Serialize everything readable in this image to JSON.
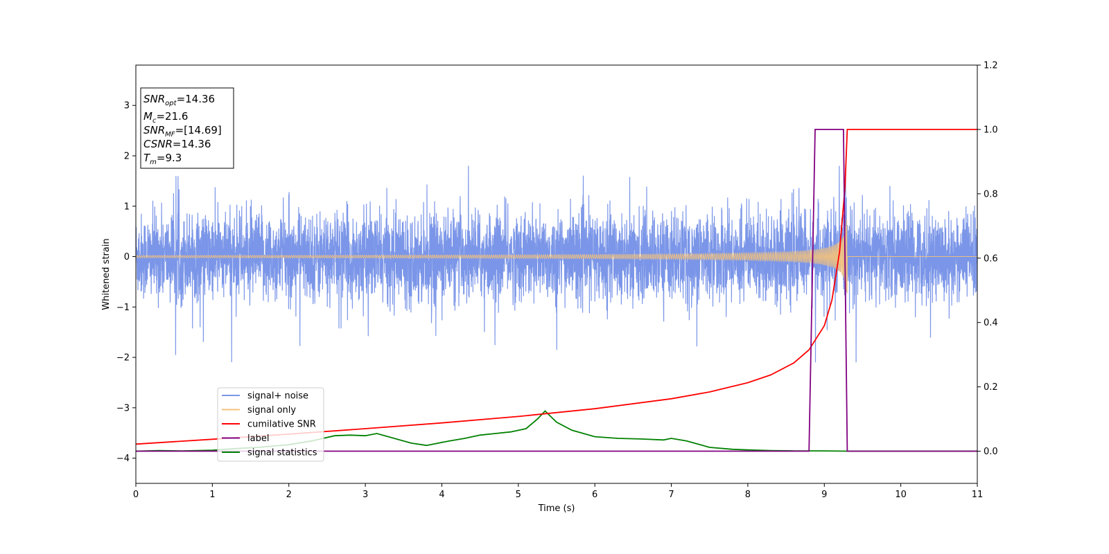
{
  "chart_data": {
    "type": "line",
    "xlabel": "Time (s)",
    "ylabel_left": "Whitened strain",
    "ylabel_right": "",
    "xlim": [
      0,
      11
    ],
    "ylim_left": [
      -4.5,
      3.8
    ],
    "ylim_right": [
      -0.1,
      1.2
    ],
    "x_ticks": [
      "0",
      "1",
      "2",
      "3",
      "4",
      "5",
      "6",
      "7",
      "8",
      "9",
      "10",
      "11"
    ],
    "y_left_ticks": [
      "−4",
      "−3",
      "−2",
      "−1",
      "0",
      "1",
      "2",
      "3"
    ],
    "y_right_ticks": [
      "0.0",
      "0.2",
      "0.4",
      "0.6",
      "0.8",
      "1.0",
      "1.2"
    ],
    "grid": false,
    "legend_position": "lower-left",
    "info_box": {
      "snr_opt_base": "SNR",
      "snr_opt_sub": "opt",
      "snr_opt_value": "=14.36",
      "mc_base": "M",
      "mc_sub": "c",
      "mc_value": "=21.6",
      "snr_mf_base": "SNR",
      "snr_mf_sub": "MF",
      "snr_mf_value": "=[14.69]",
      "csnr_base": "CSNR",
      "csnr_value": "=14.36",
      "tm_base": "T",
      "tm_sub": "m",
      "tm_value": "=9.3"
    },
    "series": [
      {
        "name": "signal+ noise",
        "axis": "left",
        "color": "#7b96e8",
        "description_range": [
          -2.1,
          1.8
        ]
      },
      {
        "name": "signal only",
        "axis": "left",
        "color": "#f5c27a",
        "merger_time": 9.3,
        "peak_amplitude": 0.9
      },
      {
        "name": "cumilative SNR",
        "axis": "right",
        "color": "#ff0000",
        "x": [
          0,
          1,
          2,
          3,
          4,
          5,
          6,
          7,
          7.5,
          8,
          8.3,
          8.6,
          8.8,
          9.0,
          9.1,
          9.2,
          9.27,
          9.3,
          11
        ],
        "y": [
          0.022,
          0.037,
          0.053,
          0.07,
          0.088,
          0.108,
          0.132,
          0.163,
          0.184,
          0.213,
          0.237,
          0.274,
          0.315,
          0.39,
          0.47,
          0.62,
          0.82,
          1.0,
          1.0
        ]
      },
      {
        "name": "label",
        "axis": "right",
        "color": "#800080",
        "x": [
          0,
          8.8,
          8.88,
          9.25,
          9.3,
          11
        ],
        "y": [
          0,
          0,
          1,
          1,
          0,
          0
        ]
      },
      {
        "name": "signal statistics",
        "axis": "right",
        "color": "#008000",
        "x": [
          0,
          0.3,
          0.6,
          1.0,
          1.3,
          1.6,
          2.0,
          2.3,
          2.6,
          2.8,
          3.0,
          3.15,
          3.3,
          3.6,
          3.8,
          4.1,
          4.3,
          4.5,
          4.7,
          4.9,
          5.1,
          5.25,
          5.35,
          5.5,
          5.7,
          6.0,
          6.3,
          6.6,
          6.9,
          7.0,
          7.2,
          7.5,
          7.8,
          8.0,
          8.3,
          8.6,
          9.0,
          9.3,
          11
        ],
        "y": [
          0,
          0.002,
          0.001,
          0.003,
          0.008,
          0.012,
          0.02,
          0.032,
          0.048,
          0.05,
          0.048,
          0.055,
          0.045,
          0.025,
          0.018,
          0.032,
          0.04,
          0.05,
          0.055,
          0.06,
          0.07,
          0.1,
          0.125,
          0.09,
          0.065,
          0.045,
          0.04,
          0.038,
          0.035,
          0.04,
          0.032,
          0.012,
          0.006,
          0.004,
          0.002,
          0.001,
          0.001,
          0.0,
          0.0
        ]
      }
    ]
  }
}
